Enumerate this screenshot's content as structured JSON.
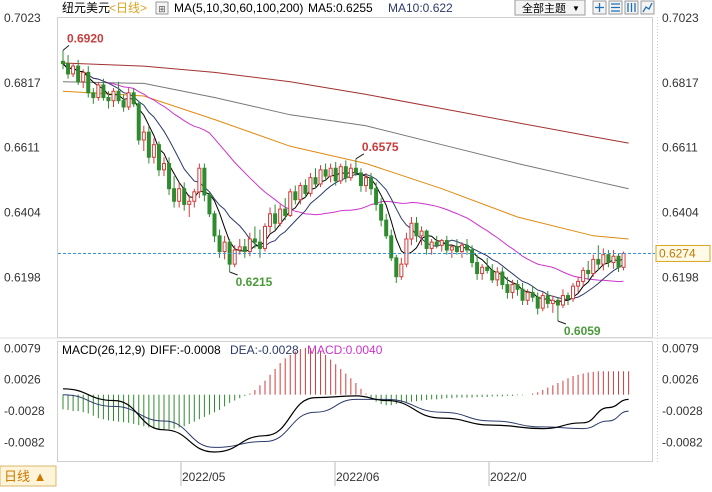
{
  "header": {
    "symbol": "纽元美元",
    "period_tag": "<日线>",
    "ma_label": "MA(5,10,30,60,100,200)",
    "ma5_text": "MA5:0.6255",
    "ma10_text": "MA10:0.622",
    "theme_button": "全部主题",
    "theme_arrow": "▼"
  },
  "macd_header": {
    "title": "MACD(26,12,9)",
    "diff_text": "DIFF:-0.0008",
    "dea_text": "DEA:-0.0028",
    "macd_text": "MACD:0.0040"
  },
  "footer": {
    "period_button": "日线 ▲",
    "dates": [
      "2022/05",
      "2022/06",
      "2022/0"
    ]
  },
  "colors": {
    "up": "#d23c3c",
    "down": "#2e8b2e",
    "ma5": "#000000",
    "ma10": "#2c3a6a",
    "ma30": "#cc33cc",
    "ma60": "#e08a10",
    "ma100": "#777777",
    "ma200": "#a33030",
    "diff": "#000000",
    "dea": "#2c3a6a",
    "current_line": "#3a8fd6",
    "annotation_high": "#c83c3c",
    "annotation_low": "#4a9a3a"
  },
  "chart_data": {
    "type": "candlestick",
    "price_axis": {
      "ticks": [
        0.7023,
        0.6817,
        0.6611,
        0.6404,
        0.6198
      ],
      "range": [
        0.6005,
        0.7023
      ]
    },
    "current_price": 0.6274,
    "annotations": [
      {
        "label": "0.6920",
        "index": 0,
        "value": 0.692,
        "kind": "high"
      },
      {
        "label": "0.6215",
        "index": 33,
        "value": 0.6215,
        "kind": "low"
      },
      {
        "label": "0.6575",
        "index": 58,
        "value": 0.6575,
        "kind": "high"
      },
      {
        "label": "0.6059",
        "index": 98,
        "value": 0.6059,
        "kind": "low"
      }
    ],
    "candles": [
      {
        "o": 0.6885,
        "h": 0.692,
        "l": 0.686,
        "c": 0.6878
      },
      {
        "o": 0.6878,
        "h": 0.6905,
        "l": 0.683,
        "c": 0.6845
      },
      {
        "o": 0.6845,
        "h": 0.688,
        "l": 0.6835,
        "c": 0.687
      },
      {
        "o": 0.687,
        "h": 0.689,
        "l": 0.681,
        "c": 0.682
      },
      {
        "o": 0.682,
        "h": 0.686,
        "l": 0.68,
        "c": 0.685
      },
      {
        "o": 0.685,
        "h": 0.687,
        "l": 0.677,
        "c": 0.6785
      },
      {
        "o": 0.6785,
        "h": 0.68,
        "l": 0.675,
        "c": 0.677
      },
      {
        "o": 0.677,
        "h": 0.682,
        "l": 0.676,
        "c": 0.681
      },
      {
        "o": 0.681,
        "h": 0.683,
        "l": 0.676,
        "c": 0.677
      },
      {
        "o": 0.677,
        "h": 0.679,
        "l": 0.6735,
        "c": 0.676
      },
      {
        "o": 0.676,
        "h": 0.68,
        "l": 0.674,
        "c": 0.679
      },
      {
        "o": 0.679,
        "h": 0.682,
        "l": 0.675,
        "c": 0.676
      },
      {
        "o": 0.676,
        "h": 0.678,
        "l": 0.6725,
        "c": 0.674
      },
      {
        "o": 0.674,
        "h": 0.68,
        "l": 0.673,
        "c": 0.6785
      },
      {
        "o": 0.6785,
        "h": 0.68,
        "l": 0.674,
        "c": 0.675
      },
      {
        "o": 0.675,
        "h": 0.676,
        "l": 0.662,
        "c": 0.6635
      },
      {
        "o": 0.6635,
        "h": 0.668,
        "l": 0.66,
        "c": 0.666
      },
      {
        "o": 0.666,
        "h": 0.668,
        "l": 0.656,
        "c": 0.658
      },
      {
        "o": 0.658,
        "h": 0.664,
        "l": 0.656,
        "c": 0.662
      },
      {
        "o": 0.662,
        "h": 0.663,
        "l": 0.652,
        "c": 0.654
      },
      {
        "o": 0.654,
        "h": 0.658,
        "l": 0.652,
        "c": 0.656
      },
      {
        "o": 0.656,
        "h": 0.658,
        "l": 0.646,
        "c": 0.648
      },
      {
        "o": 0.648,
        "h": 0.652,
        "l": 0.642,
        "c": 0.644
      },
      {
        "o": 0.644,
        "h": 0.65,
        "l": 0.642,
        "c": 0.648
      },
      {
        "o": 0.648,
        "h": 0.65,
        "l": 0.641,
        "c": 0.643
      },
      {
        "o": 0.643,
        "h": 0.646,
        "l": 0.639,
        "c": 0.644
      },
      {
        "o": 0.644,
        "h": 0.648,
        "l": 0.642,
        "c": 0.647
      },
      {
        "o": 0.647,
        "h": 0.656,
        "l": 0.645,
        "c": 0.6545
      },
      {
        "o": 0.6545,
        "h": 0.656,
        "l": 0.644,
        "c": 0.646
      },
      {
        "o": 0.646,
        "h": 0.647,
        "l": 0.639,
        "c": 0.64
      },
      {
        "o": 0.64,
        "h": 0.641,
        "l": 0.631,
        "c": 0.633
      },
      {
        "o": 0.633,
        "h": 0.635,
        "l": 0.626,
        "c": 0.628
      },
      {
        "o": 0.628,
        "h": 0.633,
        "l": 0.6255,
        "c": 0.631
      },
      {
        "o": 0.631,
        "h": 0.632,
        "l": 0.6215,
        "c": 0.624
      },
      {
        "o": 0.624,
        "h": 0.63,
        "l": 0.623,
        "c": 0.6285
      },
      {
        "o": 0.6285,
        "h": 0.632,
        "l": 0.627,
        "c": 0.6295
      },
      {
        "o": 0.6295,
        "h": 0.632,
        "l": 0.626,
        "c": 0.628
      },
      {
        "o": 0.628,
        "h": 0.634,
        "l": 0.6265,
        "c": 0.632
      },
      {
        "o": 0.632,
        "h": 0.636,
        "l": 0.629,
        "c": 0.631
      },
      {
        "o": 0.631,
        "h": 0.635,
        "l": 0.626,
        "c": 0.629
      },
      {
        "o": 0.629,
        "h": 0.637,
        "l": 0.628,
        "c": 0.636
      },
      {
        "o": 0.636,
        "h": 0.642,
        "l": 0.634,
        "c": 0.64
      },
      {
        "o": 0.64,
        "h": 0.643,
        "l": 0.635,
        "c": 0.637
      },
      {
        "o": 0.637,
        "h": 0.643,
        "l": 0.636,
        "c": 0.6415
      },
      {
        "o": 0.6415,
        "h": 0.645,
        "l": 0.638,
        "c": 0.6395
      },
      {
        "o": 0.6395,
        "h": 0.648,
        "l": 0.639,
        "c": 0.647
      },
      {
        "o": 0.647,
        "h": 0.649,
        "l": 0.643,
        "c": 0.6445
      },
      {
        "o": 0.6445,
        "h": 0.65,
        "l": 0.643,
        "c": 0.649
      },
      {
        "o": 0.649,
        "h": 0.651,
        "l": 0.645,
        "c": 0.6465
      },
      {
        "o": 0.6465,
        "h": 0.653,
        "l": 0.6455,
        "c": 0.6515
      },
      {
        "o": 0.6515,
        "h": 0.6545,
        "l": 0.648,
        "c": 0.6495
      },
      {
        "o": 0.6495,
        "h": 0.6555,
        "l": 0.6485,
        "c": 0.654
      },
      {
        "o": 0.654,
        "h": 0.656,
        "l": 0.6505,
        "c": 0.652
      },
      {
        "o": 0.652,
        "h": 0.656,
        "l": 0.65,
        "c": 0.6545
      },
      {
        "o": 0.6545,
        "h": 0.6565,
        "l": 0.649,
        "c": 0.6505
      },
      {
        "o": 0.6505,
        "h": 0.656,
        "l": 0.6495,
        "c": 0.655
      },
      {
        "o": 0.655,
        "h": 0.657,
        "l": 0.65,
        "c": 0.6515
      },
      {
        "o": 0.6515,
        "h": 0.656,
        "l": 0.6505,
        "c": 0.6545
      },
      {
        "o": 0.6545,
        "h": 0.6575,
        "l": 0.652,
        "c": 0.653
      },
      {
        "o": 0.653,
        "h": 0.6545,
        "l": 0.647,
        "c": 0.649
      },
      {
        "o": 0.649,
        "h": 0.653,
        "l": 0.647,
        "c": 0.6515
      },
      {
        "o": 0.6515,
        "h": 0.653,
        "l": 0.646,
        "c": 0.648
      },
      {
        "o": 0.648,
        "h": 0.65,
        "l": 0.641,
        "c": 0.643
      },
      {
        "o": 0.643,
        "h": 0.645,
        "l": 0.636,
        "c": 0.638
      },
      {
        "o": 0.638,
        "h": 0.64,
        "l": 0.632,
        "c": 0.633
      },
      {
        "o": 0.633,
        "h": 0.635,
        "l": 0.625,
        "c": 0.626
      },
      {
        "o": 0.626,
        "h": 0.627,
        "l": 0.618,
        "c": 0.62
      },
      {
        "o": 0.62,
        "h": 0.626,
        "l": 0.619,
        "c": 0.624
      },
      {
        "o": 0.624,
        "h": 0.634,
        "l": 0.623,
        "c": 0.632
      },
      {
        "o": 0.632,
        "h": 0.639,
        "l": 0.63,
        "c": 0.637
      },
      {
        "o": 0.637,
        "h": 0.639,
        "l": 0.631,
        "c": 0.633
      },
      {
        "o": 0.633,
        "h": 0.636,
        "l": 0.63,
        "c": 0.6345
      },
      {
        "o": 0.6345,
        "h": 0.635,
        "l": 0.627,
        "c": 0.629
      },
      {
        "o": 0.629,
        "h": 0.632,
        "l": 0.627,
        "c": 0.631
      },
      {
        "o": 0.631,
        "h": 0.633,
        "l": 0.629,
        "c": 0.63
      },
      {
        "o": 0.63,
        "h": 0.632,
        "l": 0.628,
        "c": 0.6315
      },
      {
        "o": 0.6315,
        "h": 0.633,
        "l": 0.627,
        "c": 0.6285
      },
      {
        "o": 0.6285,
        "h": 0.63,
        "l": 0.626,
        "c": 0.6295
      },
      {
        "o": 0.6295,
        "h": 0.632,
        "l": 0.627,
        "c": 0.628
      },
      {
        "o": 0.628,
        "h": 0.631,
        "l": 0.626,
        "c": 0.63
      },
      {
        "o": 0.63,
        "h": 0.632,
        "l": 0.627,
        "c": 0.6285
      },
      {
        "o": 0.6285,
        "h": 0.63,
        "l": 0.623,
        "c": 0.6245
      },
      {
        "o": 0.6245,
        "h": 0.627,
        "l": 0.619,
        "c": 0.621
      },
      {
        "o": 0.621,
        "h": 0.624,
        "l": 0.619,
        "c": 0.623
      },
      {
        "o": 0.623,
        "h": 0.626,
        "l": 0.621,
        "c": 0.622
      },
      {
        "o": 0.622,
        "h": 0.624,
        "l": 0.618,
        "c": 0.619
      },
      {
        "o": 0.619,
        "h": 0.623,
        "l": 0.617,
        "c": 0.6215
      },
      {
        "o": 0.6215,
        "h": 0.623,
        "l": 0.616,
        "c": 0.6175
      },
      {
        "o": 0.6175,
        "h": 0.62,
        "l": 0.613,
        "c": 0.615
      },
      {
        "o": 0.615,
        "h": 0.619,
        "l": 0.613,
        "c": 0.6175
      },
      {
        "o": 0.6175,
        "h": 0.619,
        "l": 0.614,
        "c": 0.616
      },
      {
        "o": 0.616,
        "h": 0.618,
        "l": 0.611,
        "c": 0.6125
      },
      {
        "o": 0.6125,
        "h": 0.616,
        "l": 0.611,
        "c": 0.615
      },
      {
        "o": 0.615,
        "h": 0.617,
        "l": 0.612,
        "c": 0.6135
      },
      {
        "o": 0.6135,
        "h": 0.615,
        "l": 0.608,
        "c": 0.61
      },
      {
        "o": 0.61,
        "h": 0.615,
        "l": 0.609,
        "c": 0.614
      },
      {
        "o": 0.614,
        "h": 0.6155,
        "l": 0.61,
        "c": 0.6115
      },
      {
        "o": 0.6115,
        "h": 0.614,
        "l": 0.6085,
        "c": 0.6125
      },
      {
        "o": 0.6125,
        "h": 0.6135,
        "l": 0.6059,
        "c": 0.611
      },
      {
        "o": 0.611,
        "h": 0.616,
        "l": 0.61,
        "c": 0.614
      },
      {
        "o": 0.614,
        "h": 0.615,
        "l": 0.611,
        "c": 0.613
      },
      {
        "o": 0.613,
        "h": 0.618,
        "l": 0.612,
        "c": 0.617
      },
      {
        "o": 0.617,
        "h": 0.62,
        "l": 0.615,
        "c": 0.6185
      },
      {
        "o": 0.6185,
        "h": 0.623,
        "l": 0.617,
        "c": 0.622
      },
      {
        "o": 0.622,
        "h": 0.625,
        "l": 0.619,
        "c": 0.621
      },
      {
        "o": 0.621,
        "h": 0.627,
        "l": 0.62,
        "c": 0.6255
      },
      {
        "o": 0.6255,
        "h": 0.63,
        "l": 0.622,
        "c": 0.624
      },
      {
        "o": 0.624,
        "h": 0.629,
        "l": 0.622,
        "c": 0.627
      },
      {
        "o": 0.627,
        "h": 0.6285,
        "l": 0.623,
        "c": 0.6245
      },
      {
        "o": 0.6245,
        "h": 0.6285,
        "l": 0.6225,
        "c": 0.6265
      },
      {
        "o": 0.6265,
        "h": 0.6275,
        "l": 0.6215,
        "c": 0.623
      },
      {
        "o": 0.623,
        "h": 0.628,
        "l": 0.622,
        "c": 0.6274
      }
    ],
    "ma_overlays": {
      "ma60": [
        [
          0,
          0.679
        ],
        [
          16,
          0.6775
        ],
        [
          30,
          0.67
        ],
        [
          45,
          0.6615
        ],
        [
          60,
          0.656
        ],
        [
          75,
          0.648
        ],
        [
          90,
          0.639
        ],
        [
          105,
          0.633
        ],
        [
          112,
          0.632
        ]
      ],
      "ma100": [
        [
          0,
          0.682
        ],
        [
          16,
          0.6815
        ],
        [
          30,
          0.677
        ],
        [
          45,
          0.6715
        ],
        [
          60,
          0.668
        ],
        [
          75,
          0.662
        ],
        [
          90,
          0.656
        ],
        [
          105,
          0.6505
        ],
        [
          112,
          0.648
        ]
      ],
      "ma200": [
        [
          0,
          0.688
        ],
        [
          16,
          0.687
        ],
        [
          30,
          0.685
        ],
        [
          45,
          0.682
        ],
        [
          60,
          0.678
        ],
        [
          75,
          0.6735
        ],
        [
          90,
          0.669
        ],
        [
          105,
          0.6645
        ],
        [
          112,
          0.6625
        ]
      ]
    },
    "macd": {
      "ticks": [
        0.0079,
        0.0026,
        -0.0028,
        -0.0082
      ],
      "range": [
        -0.0115,
        0.009
      ],
      "hist": [
        -0.0025,
        -0.0026,
        -0.0028,
        -0.0028,
        -0.003,
        -0.0032,
        -0.0036,
        -0.004,
        -0.0042,
        -0.0044,
        -0.0045,
        -0.0046,
        -0.0047,
        -0.0048,
        -0.005,
        -0.0052,
        -0.0054,
        -0.0056,
        -0.0058,
        -0.006,
        -0.006,
        -0.0059,
        -0.0058,
        -0.0056,
        -0.0054,
        -0.005,
        -0.0046,
        -0.0042,
        -0.0038,
        -0.0034,
        -0.003,
        -0.0026,
        -0.002,
        -0.0014,
        -0.001,
        -0.0006,
        -0.0002,
        0.0002,
        0.0008,
        0.0016,
        0.0024,
        0.0034,
        0.0044,
        0.0054,
        0.0062,
        0.0068,
        0.0074,
        0.0078,
        0.008,
        0.008,
        0.0078,
        0.0074,
        0.0068,
        0.006,
        0.0052,
        0.0044,
        0.0036,
        0.0028,
        0.002,
        0.001,
        0.0002,
        -0.0006,
        -0.0012,
        -0.0016,
        -0.0018,
        -0.0018,
        -0.0016,
        -0.0014,
        -0.0013,
        -0.0012,
        -0.0011,
        -0.001,
        -0.0009,
        -0.0008,
        -0.0008,
        -0.0007,
        -0.0006,
        -0.0006,
        -0.0005,
        -0.0005,
        -0.0005,
        -0.0005,
        -0.0004,
        -0.0004,
        -0.0004,
        -0.0003,
        -0.0003,
        -0.0003,
        -0.0002,
        -0.0002,
        -0.0001,
        -0.0001,
        0.0,
        0.0002,
        0.0004,
        0.0008,
        0.0012,
        0.0016,
        0.002,
        0.0024,
        0.0028,
        0.0032,
        0.0034,
        0.0036,
        0.0038,
        0.0039,
        0.004,
        0.004,
        0.004,
        0.004,
        0.004,
        0.004,
        0.004
      ],
      "diff": [
        [
          0,
          0.001
        ],
        [
          10,
          -0.001
        ],
        [
          20,
          -0.006
        ],
        [
          30,
          -0.0098
        ],
        [
          40,
          -0.007
        ],
        [
          50,
          -0.0005
        ],
        [
          58,
          -0.0002
        ],
        [
          64,
          -0.001
        ],
        [
          75,
          -0.004
        ],
        [
          85,
          -0.0052
        ],
        [
          95,
          -0.0058
        ],
        [
          103,
          -0.0048
        ],
        [
          108,
          -0.0022
        ],
        [
          112,
          -0.0008
        ]
      ],
      "dea": [
        [
          0,
          0.0
        ],
        [
          10,
          -0.002
        ],
        [
          20,
          -0.0045
        ],
        [
          30,
          -0.009
        ],
        [
          40,
          -0.008
        ],
        [
          50,
          -0.003
        ],
        [
          58,
          -0.0008
        ],
        [
          64,
          -0.0008
        ],
        [
          75,
          -0.003
        ],
        [
          85,
          -0.0045
        ],
        [
          95,
          -0.0055
        ],
        [
          103,
          -0.0058
        ],
        [
          108,
          -0.0045
        ],
        [
          112,
          -0.0028
        ]
      ]
    }
  }
}
